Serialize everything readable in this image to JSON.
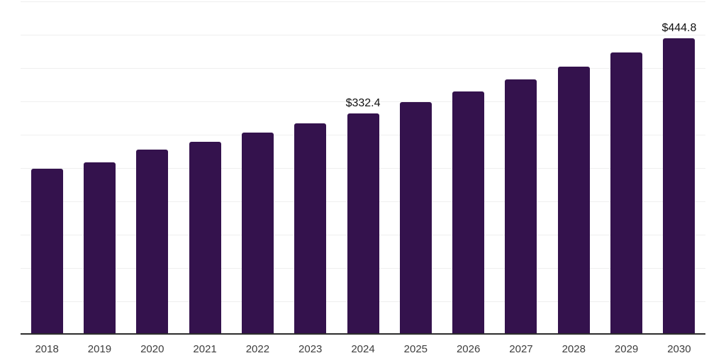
{
  "chart_data": {
    "type": "bar",
    "title": "",
    "xlabel": "",
    "ylabel": "",
    "categories": [
      "2018",
      "2019",
      "2020",
      "2021",
      "2022",
      "2023",
      "2024",
      "2025",
      "2026",
      "2027",
      "2028",
      "2029",
      "2030"
    ],
    "values": [
      248.5,
      259.0,
      277.2,
      288.9,
      302.7,
      317.5,
      332.4,
      348.9,
      365.3,
      383.4,
      402.5,
      423.7,
      444.8
    ],
    "data_labels": [
      "",
      "",
      "",
      "",
      "",
      "",
      "$332.4",
      "",
      "",
      "",
      "",
      "",
      "$444.8"
    ],
    "ylim": [
      0,
      500
    ],
    "grid_step": 50,
    "grid": "horizontal-only",
    "legend": "none",
    "y_axis_tick_labels_visible": false,
    "colors": {
      "bar": "#34124d",
      "axis_line": "#2d2d2d",
      "gridline": "#efefef",
      "tick_label": "#3d3d3d",
      "data_label": "#111111",
      "background": "#ffffff"
    }
  }
}
